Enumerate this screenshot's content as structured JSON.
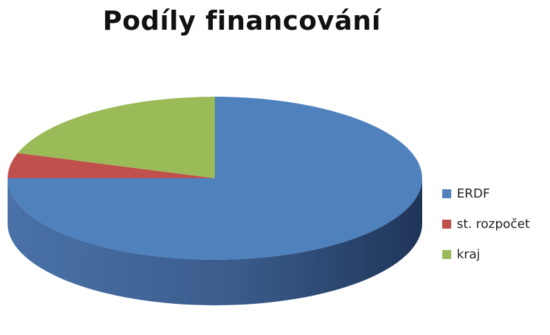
{
  "chart_data": {
    "type": "pie",
    "title": "Podíly financování",
    "categories": [
      "ERDF",
      "st. rozpočet",
      "kraj"
    ],
    "values": [
      75,
      5,
      20
    ],
    "colors": [
      "#4F81BD",
      "#C0504D",
      "#9BBB59"
    ],
    "side_colors": [
      "#2E4D7A",
      "#7A2E2C",
      "#5E7535"
    ],
    "legend_position": "right",
    "style": "3d"
  }
}
